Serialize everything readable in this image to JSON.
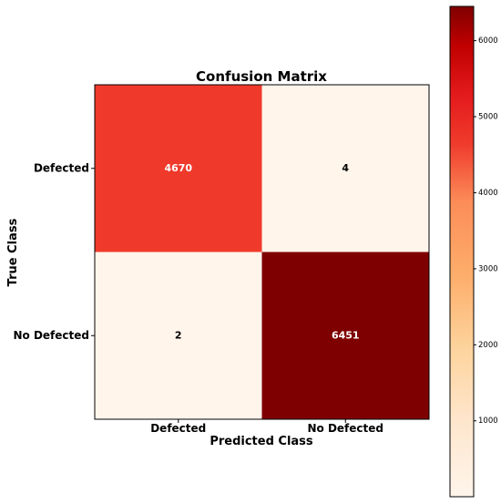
{
  "chart_data": {
    "type": "heatmap",
    "title": "Confusion Matrix",
    "xlabel": "Predicted Class",
    "ylabel": "True Class",
    "x_categories": [
      "Defected",
      "No Defected"
    ],
    "y_categories": [
      "Defected",
      "No Defected"
    ],
    "values": [
      [
        4670,
        4
      ],
      [
        2,
        6451
      ]
    ],
    "colormap": "Reds",
    "colorbar": {
      "range": [
        2,
        6451
      ],
      "ticks": [
        1000,
        2000,
        3000,
        4000,
        5000,
        6000
      ]
    },
    "colors": {
      "low": "#fff5eb",
      "mid_low": "#fdd49e",
      "mid": "#fc8d59",
      "mid_high": "#ef3b2c",
      "high": "#d7301f",
      "max": "#7f0000"
    }
  }
}
